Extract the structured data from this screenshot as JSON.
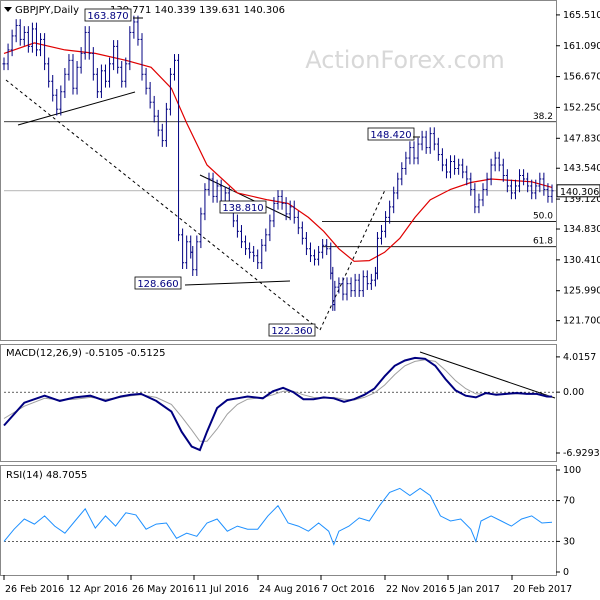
{
  "header": {
    "symbol": "GBPJPY,Daily",
    "ohlc": "139.771 140.339 139.631 140.306"
  },
  "watermark": "ActionForex.com",
  "chart_data": [
    {
      "type": "candlestick",
      "name": "GBPJPY,Daily",
      "ylim": [
        119.5,
        166.5
      ],
      "y_ticks": [
        "165.510",
        "161.090",
        "156.670",
        "152.250",
        "147.830",
        "143.540",
        "139.120",
        "134.830",
        "130.410",
        "125.990",
        "121.700"
      ],
      "x_ticks": [
        "26 Feb 2016",
        "12 Apr 2016",
        "26 May 2016",
        "11 Jul 2016",
        "24 Aug 2016",
        "7 Oct 2016",
        "22 Nov 2016",
        "5 Jan 2017",
        "20 Feb 2017"
      ],
      "last_price": "140.306",
      "moving_average_color": "#e00000",
      "price_color": "#000080",
      "close_path": [
        [
          0,
          158.5
        ],
        [
          4,
          160.5
        ],
        [
          8,
          162.5
        ],
        [
          12,
          164
        ],
        [
          16,
          162
        ],
        [
          20,
          163
        ],
        [
          24,
          161
        ],
        [
          28,
          163.5
        ],
        [
          32,
          160.5
        ],
        [
          36,
          162
        ],
        [
          40,
          158.5
        ],
        [
          44,
          156
        ],
        [
          48,
          154
        ],
        [
          52,
          152
        ],
        [
          56,
          154.5
        ],
        [
          60,
          157
        ],
        [
          64,
          159
        ],
        [
          68,
          155
        ],
        [
          72,
          158
        ],
        [
          76,
          160
        ],
        [
          80,
          163
        ],
        [
          84,
          160
        ],
        [
          88,
          157
        ],
        [
          92,
          154.5
        ],
        [
          96,
          157.5
        ],
        [
          100,
          156
        ],
        [
          104,
          158.5
        ],
        [
          108,
          161
        ],
        [
          112,
          158
        ],
        [
          116,
          156
        ],
        [
          120,
          158.5
        ],
        [
          124,
          163
        ],
        [
          128,
          164.5
        ],
        [
          132,
          162
        ],
        [
          136,
          157
        ],
        [
          140,
          155
        ],
        [
          144,
          153
        ],
        [
          148,
          151
        ],
        [
          152,
          149
        ],
        [
          156,
          147.5
        ],
        [
          160,
          152
        ],
        [
          164,
          157
        ],
        [
          168,
          159
        ],
        [
          172,
          134
        ],
        [
          176,
          130
        ],
        [
          180,
          133
        ],
        [
          184,
          131.5
        ],
        [
          186,
          129
        ],
        [
          190,
          133
        ],
        [
          194,
          137
        ],
        [
          198,
          140.5
        ],
        [
          202,
          142
        ],
        [
          206,
          139.5
        ],
        [
          210,
          141
        ],
        [
          214,
          138.5
        ],
        [
          218,
          140
        ],
        [
          222,
          138
        ],
        [
          226,
          136
        ],
        [
          230,
          134.5
        ],
        [
          234,
          133
        ],
        [
          238,
          132
        ],
        [
          242,
          131.5
        ],
        [
          246,
          131
        ],
        [
          250,
          130
        ],
        [
          254,
          132.5
        ],
        [
          258,
          134
        ],
        [
          262,
          136
        ],
        [
          266,
          138.5
        ],
        [
          270,
          139.5
        ],
        [
          274,
          138.5
        ],
        [
          278,
          137
        ],
        [
          282,
          138
        ],
        [
          286,
          136.5
        ],
        [
          290,
          135
        ],
        [
          294,
          133.5
        ],
        [
          298,
          132
        ],
        [
          302,
          131
        ],
        [
          306,
          130.5
        ],
        [
          310,
          131.5
        ],
        [
          314,
          132.5
        ],
        [
          318,
          132
        ],
        [
          322,
          128.5
        ],
        [
          324,
          124
        ],
        [
          326,
          126.5
        ],
        [
          330,
          127
        ],
        [
          334,
          125.5
        ],
        [
          338,
          127
        ],
        [
          342,
          126
        ],
        [
          346,
          127.5
        ],
        [
          350,
          126
        ],
        [
          354,
          128
        ],
        [
          358,
          127
        ],
        [
          362,
          127.5
        ],
        [
          366,
          128.5
        ],
        [
          368,
          133.5
        ],
        [
          372,
          134.5
        ],
        [
          376,
          136.5
        ],
        [
          380,
          138
        ],
        [
          384,
          140
        ],
        [
          388,
          142
        ],
        [
          392,
          143.5
        ],
        [
          396,
          145
        ],
        [
          400,
          146.5
        ],
        [
          404,
          145
        ],
        [
          408,
          147
        ],
        [
          412,
          148
        ],
        [
          416,
          146.5
        ],
        [
          420,
          148.5
        ],
        [
          424,
          147
        ],
        [
          428,
          145.5
        ],
        [
          432,
          144
        ],
        [
          436,
          143
        ],
        [
          440,
          144.5
        ],
        [
          444,
          143.5
        ],
        [
          448,
          144
        ],
        [
          452,
          143
        ],
        [
          456,
          142
        ],
        [
          460,
          140.5
        ],
        [
          464,
          138
        ],
        [
          468,
          139
        ],
        [
          472,
          140.5
        ],
        [
          476,
          142
        ],
        [
          480,
          144
        ],
        [
          484,
          145
        ],
        [
          488,
          144
        ],
        [
          492,
          142.5
        ],
        [
          496,
          141
        ],
        [
          500,
          140
        ],
        [
          504,
          141
        ],
        [
          508,
          142.5
        ],
        [
          512,
          142
        ],
        [
          516,
          141
        ],
        [
          520,
          140
        ],
        [
          524,
          141
        ],
        [
          528,
          142
        ],
        [
          532,
          140.5
        ],
        [
          536,
          139.5
        ],
        [
          540,
          140.306
        ]
      ],
      "moving_average": [
        [
          0,
          160
        ],
        [
          30,
          161.5
        ],
        [
          60,
          160.5
        ],
        [
          90,
          160
        ],
        [
          120,
          159
        ],
        [
          145,
          158
        ],
        [
          165,
          155
        ],
        [
          180,
          150
        ],
        [
          200,
          144
        ],
        [
          230,
          140
        ],
        [
          260,
          139
        ],
        [
          280,
          138.5
        ],
        [
          300,
          136.5
        ],
        [
          315,
          134.5
        ],
        [
          330,
          132
        ],
        [
          345,
          130.2
        ],
        [
          360,
          130.3
        ],
        [
          375,
          131.5
        ],
        [
          390,
          133.5
        ],
        [
          405,
          136.5
        ],
        [
          420,
          139
        ],
        [
          440,
          140.5
        ],
        [
          460,
          141.5
        ],
        [
          480,
          142
        ],
        [
          500,
          141.8
        ],
        [
          520,
          141.6
        ],
        [
          540,
          140.8
        ]
      ],
      "annotations": [
        {
          "label": "163.870",
          "price": 163.87
        },
        {
          "label": "148.420",
          "price": 148.42
        },
        {
          "label": "138.810",
          "price": 138.81
        },
        {
          "label": "128.660",
          "price": 128.66
        },
        {
          "label": "122.360",
          "price": 122.36
        }
      ],
      "fib_levels": [
        {
          "label": "38.2",
          "price": 150.2
        },
        {
          "label": "50.0",
          "price": 135.9
        },
        {
          "label": "61.8",
          "price": 132.3
        }
      ]
    },
    {
      "type": "line",
      "name": "MACD(12,26,9) -0.5105 -0.5125",
      "ylim": [
        -7.5,
        4.8
      ],
      "y_ticks": [
        "4.0157",
        "0.00",
        "-6.9293"
      ],
      "macd_color": "#000080",
      "signal_color": "#a0a0a0",
      "macd_line": [
        [
          0,
          -3.8
        ],
        [
          20,
          -1.2
        ],
        [
          40,
          -0.4
        ],
        [
          55,
          -1.0
        ],
        [
          70,
          -0.6
        ],
        [
          85,
          -0.4
        ],
        [
          100,
          -1.0
        ],
        [
          115,
          -0.5
        ],
        [
          125,
          -0.3
        ],
        [
          135,
          -0.2
        ],
        [
          150,
          -1.0
        ],
        [
          165,
          -2.2
        ],
        [
          175,
          -4.5
        ],
        [
          185,
          -6.2
        ],
        [
          193,
          -6.6
        ],
        [
          200,
          -4.5
        ],
        [
          210,
          -1.8
        ],
        [
          220,
          -0.9
        ],
        [
          230,
          -0.7
        ],
        [
          240,
          -0.5
        ],
        [
          255,
          -0.7
        ],
        [
          265,
          0.1
        ],
        [
          275,
          0.5
        ],
        [
          285,
          0.0
        ],
        [
          295,
          -0.8
        ],
        [
          305,
          -0.8
        ],
        [
          315,
          -0.6
        ],
        [
          325,
          -0.7
        ],
        [
          335,
          -1.1
        ],
        [
          345,
          -0.8
        ],
        [
          355,
          -0.3
        ],
        [
          365,
          0.4
        ],
        [
          375,
          1.8
        ],
        [
          385,
          3.0
        ],
        [
          395,
          3.6
        ],
        [
          405,
          3.9
        ],
        [
          415,
          3.8
        ],
        [
          425,
          3.0
        ],
        [
          435,
          1.5
        ],
        [
          445,
          0.2
        ],
        [
          455,
          -0.4
        ],
        [
          465,
          -0.6
        ],
        [
          475,
          -0.1
        ],
        [
          485,
          -0.3
        ],
        [
          495,
          -0.2
        ],
        [
          505,
          -0.1
        ],
        [
          515,
          -0.2
        ],
        [
          525,
          -0.2
        ],
        [
          535,
          -0.5
        ],
        [
          540,
          -0.51
        ]
      ],
      "signal_line": [
        [
          0,
          -3.0
        ],
        [
          20,
          -1.6
        ],
        [
          40,
          -0.7
        ],
        [
          55,
          -0.9
        ],
        [
          70,
          -0.8
        ],
        [
          85,
          -0.6
        ],
        [
          100,
          -0.8
        ],
        [
          115,
          -0.6
        ],
        [
          125,
          -0.4
        ],
        [
          135,
          -0.3
        ],
        [
          150,
          -0.6
        ],
        [
          165,
          -1.4
        ],
        [
          175,
          -2.8
        ],
        [
          185,
          -4.3
        ],
        [
          193,
          -5.6
        ],
        [
          200,
          -5.6
        ],
        [
          210,
          -4.2
        ],
        [
          220,
          -2.5
        ],
        [
          230,
          -1.4
        ],
        [
          240,
          -0.8
        ],
        [
          255,
          -0.6
        ],
        [
          265,
          -0.3
        ],
        [
          275,
          0.1
        ],
        [
          285,
          0.1
        ],
        [
          295,
          -0.3
        ],
        [
          305,
          -0.6
        ],
        [
          315,
          -0.7
        ],
        [
          325,
          -0.6
        ],
        [
          335,
          -0.8
        ],
        [
          345,
          -0.9
        ],
        [
          355,
          -0.6
        ],
        [
          365,
          -0.1
        ],
        [
          375,
          0.8
        ],
        [
          385,
          2.0
        ],
        [
          395,
          3.0
        ],
        [
          405,
          3.5
        ],
        [
          415,
          3.7
        ],
        [
          425,
          3.5
        ],
        [
          435,
          2.5
        ],
        [
          445,
          1.3
        ],
        [
          455,
          0.4
        ],
        [
          465,
          -0.2
        ],
        [
          475,
          -0.2
        ],
        [
          485,
          -0.2
        ],
        [
          495,
          -0.2
        ],
        [
          505,
          -0.2
        ],
        [
          515,
          -0.2
        ],
        [
          525,
          -0.2
        ],
        [
          535,
          -0.4
        ],
        [
          540,
          -0.51
        ]
      ]
    },
    {
      "type": "line",
      "name": "RSI(14) 48.7055",
      "ylim": [
        0,
        100
      ],
      "y_ticks": [
        "100",
        "70",
        "30",
        "0"
      ],
      "reference_lines": [
        70,
        30
      ],
      "rsi_color": "#1e90ff",
      "rsi_line": [
        [
          0,
          30
        ],
        [
          10,
          42
        ],
        [
          20,
          52
        ],
        [
          30,
          47
        ],
        [
          40,
          55
        ],
        [
          50,
          45
        ],
        [
          60,
          38
        ],
        [
          70,
          50
        ],
        [
          80,
          62
        ],
        [
          90,
          43
        ],
        [
          100,
          55
        ],
        [
          110,
          45
        ],
        [
          120,
          58
        ],
        [
          130,
          56
        ],
        [
          140,
          42
        ],
        [
          150,
          47
        ],
        [
          160,
          48
        ],
        [
          170,
          33
        ],
        [
          180,
          38
        ],
        [
          190,
          35
        ],
        [
          200,
          48
        ],
        [
          210,
          52
        ],
        [
          220,
          40
        ],
        [
          230,
          45
        ],
        [
          240,
          42
        ],
        [
          250,
          42
        ],
        [
          260,
          55
        ],
        [
          270,
          65
        ],
        [
          280,
          48
        ],
        [
          290,
          45
        ],
        [
          300,
          40
        ],
        [
          310,
          48
        ],
        [
          320,
          40
        ],
        [
          325,
          27
        ],
        [
          330,
          40
        ],
        [
          340,
          45
        ],
        [
          350,
          53
        ],
        [
          360,
          50
        ],
        [
          370,
          65
        ],
        [
          380,
          78
        ],
        [
          390,
          82
        ],
        [
          400,
          75
        ],
        [
          410,
          82
        ],
        [
          420,
          75
        ],
        [
          430,
          55
        ],
        [
          440,
          50
        ],
        [
          450,
          52
        ],
        [
          460,
          42
        ],
        [
          465,
          30
        ],
        [
          470,
          50
        ],
        [
          480,
          55
        ],
        [
          490,
          50
        ],
        [
          500,
          45
        ],
        [
          510,
          52
        ],
        [
          520,
          55
        ],
        [
          530,
          48
        ],
        [
          540,
          48.7
        ]
      ]
    }
  ]
}
